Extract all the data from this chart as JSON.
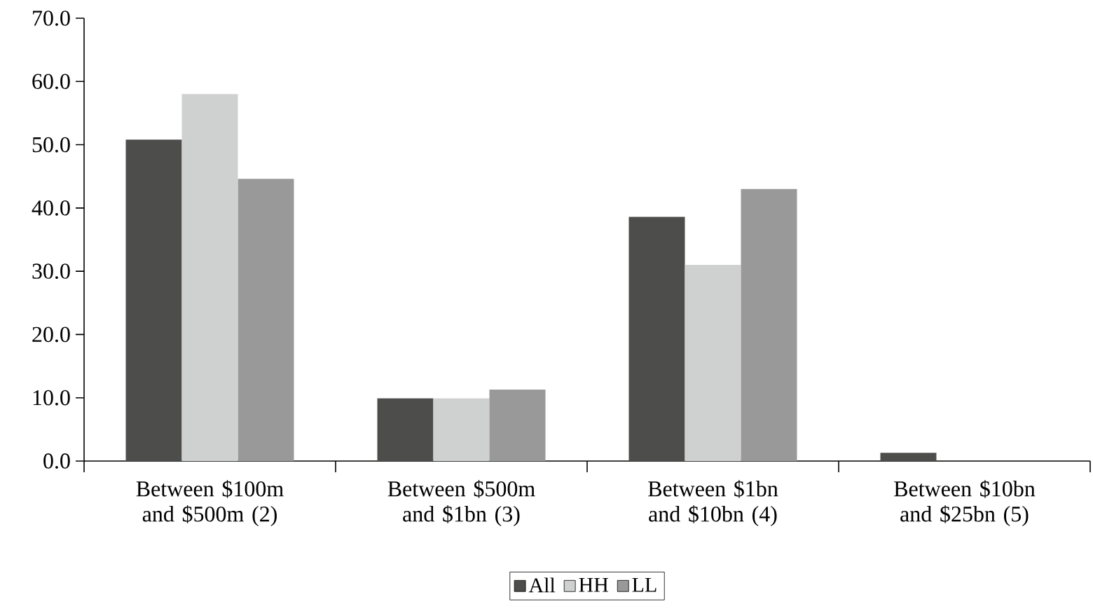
{
  "chart_data": {
    "type": "bar",
    "categories": [
      "Between $100m and $500m (2)",
      "Between $500m and $1bn (3)",
      "Between $1bn and $10bn (4)",
      "Between $10bn and $25bn (5)"
    ],
    "series": [
      {
        "name": "All",
        "color": "#4d4d4b",
        "values": [
          50.8,
          9.9,
          38.6,
          1.3
        ]
      },
      {
        "name": "HH",
        "color": "#cfd1d0",
        "values": [
          58.0,
          9.9,
          31.0,
          0
        ]
      },
      {
        "name": "LL",
        "color": "#999999",
        "values": [
          44.6,
          11.3,
          43.0,
          0
        ]
      }
    ],
    "ylim": [
      0,
      70
    ],
    "yticks": [
      {
        "value": 0,
        "label": "0.0"
      },
      {
        "value": 10,
        "label": "10.0"
      },
      {
        "value": 20,
        "label": "20.0"
      },
      {
        "value": 30,
        "label": "30.0"
      },
      {
        "value": 40,
        "label": "40.0"
      },
      {
        "value": 50,
        "label": "50.0"
      },
      {
        "value": 60,
        "label": "60.0"
      },
      {
        "value": 70,
        "label": "70.0"
      }
    ],
    "grid": false,
    "legend": "bottom"
  }
}
